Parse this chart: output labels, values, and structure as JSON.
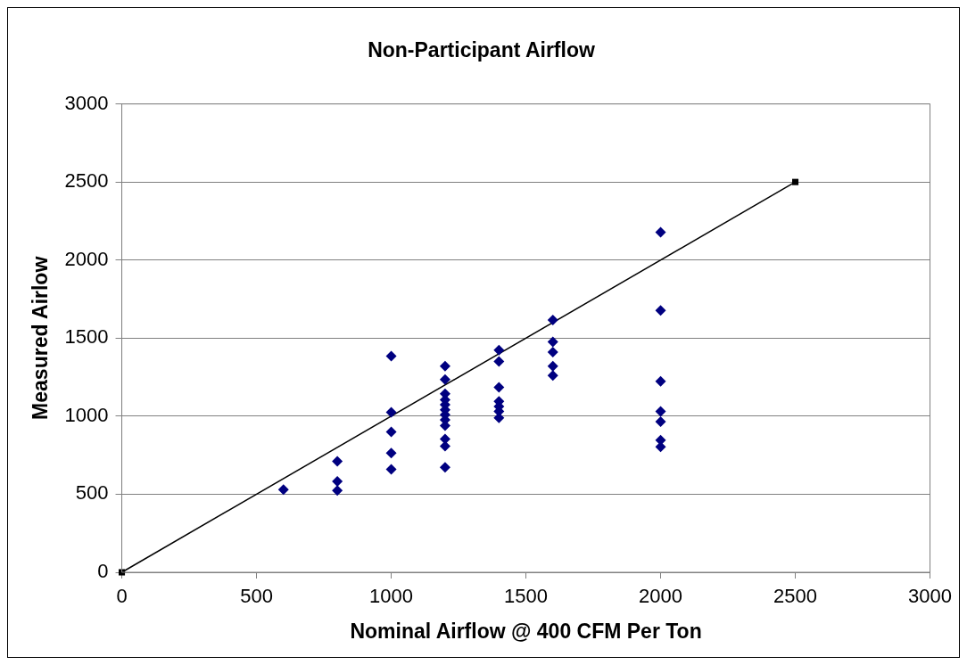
{
  "chart_data": {
    "type": "scatter",
    "title": "Non-Participant Airflow",
    "xlabel": "Nominal Airflow @ 400 CFM Per Ton",
    "ylabel": "Measured Airlow",
    "xlim": [
      0,
      3000
    ],
    "xticks": [
      0,
      500,
      1000,
      1500,
      2000,
      2500,
      3000
    ],
    "ylim": [
      0,
      3000
    ],
    "yticks": [
      0,
      500,
      1000,
      1500,
      2000,
      2500,
      3000
    ],
    "grid": "y",
    "legend": false,
    "series": [
      {
        "color": "#000080",
        "marker": "diamond",
        "x": [
          600,
          800,
          800,
          800,
          1000,
          1000,
          1000,
          1000,
          1000,
          1200,
          1200,
          1200,
          1200,
          1200,
          1200,
          1200,
          1200,
          1200,
          1200,
          1200,
          1200,
          1400,
          1400,
          1400,
          1400,
          1400,
          1400,
          1400,
          1600,
          1600,
          1600,
          1600,
          1600,
          2000,
          2000,
          2000,
          2000,
          2000,
          2000,
          2000
        ],
        "values": [
          530,
          711,
          582,
          524,
          1384,
          1025,
          899,
          763,
          660,
          1320,
          1235,
          1143,
          1105,
          1073,
          1041,
          1009,
          976,
          940,
          853,
          808,
          672,
          1423,
          1351,
          1185,
          1095,
          1062,
          1030,
          989,
          1616,
          1476,
          1410,
          1321,
          1261,
          2179,
          1677,
          1224,
          1030,
          965,
          847,
          804
        ]
      },
      {
        "type": "line",
        "color": "#000000",
        "marker": "square",
        "x": [
          0,
          2500
        ],
        "values": [
          0,
          2500
        ]
      }
    ]
  }
}
